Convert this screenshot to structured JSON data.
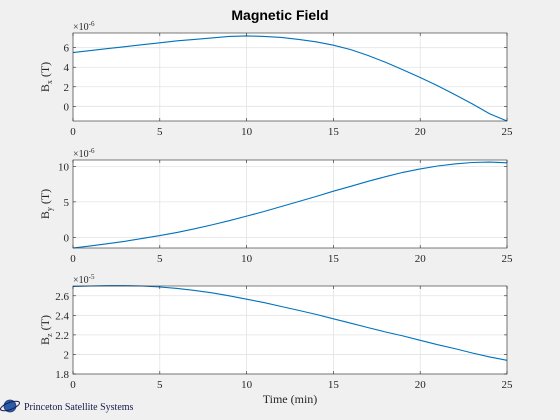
{
  "chart_data": [
    {
      "type": "line",
      "title": "Magnetic Field",
      "ylabel_main": "B",
      "ylabel_sub": "x",
      "ylabel_unit": " (T)",
      "xlabel": "",
      "exponent_base": "×10",
      "exponent_power": "-6",
      "xlim": [
        0,
        25
      ],
      "ylim": [
        -1.5,
        7.5
      ],
      "xticks": [
        0,
        5,
        10,
        15,
        20,
        25
      ],
      "yticks": [
        0,
        2,
        4,
        6
      ],
      "grid": true,
      "color": "#0072bd",
      "series": [
        {
          "x": [
            0,
            1,
            2,
            3,
            4,
            5,
            6,
            7,
            8,
            9,
            10,
            11,
            12,
            13,
            14,
            15,
            16,
            17,
            18,
            19,
            20,
            21,
            22,
            23,
            24,
            25
          ],
          "values": [
            5.5,
            5.7,
            5.9,
            6.1,
            6.3,
            6.5,
            6.7,
            6.85,
            7.0,
            7.15,
            7.2,
            7.15,
            7.05,
            6.85,
            6.6,
            6.25,
            5.8,
            5.2,
            4.5,
            3.75,
            2.95,
            2.1,
            1.2,
            0.25,
            -0.75,
            -1.5
          ]
        }
      ]
    },
    {
      "type": "line",
      "title": "",
      "ylabel_main": "B",
      "ylabel_sub": "y",
      "ylabel_unit": " (T)",
      "xlabel": "",
      "exponent_base": "×10",
      "exponent_power": "-6",
      "xlim": [
        0,
        25
      ],
      "ylim": [
        -1.5,
        10.9
      ],
      "xticks": [
        0,
        5,
        10,
        15,
        20,
        25
      ],
      "yticks": [
        0,
        5,
        10
      ],
      "grid": true,
      "color": "#0072bd",
      "series": [
        {
          "x": [
            0,
            1,
            2,
            3,
            4,
            5,
            6,
            7,
            8,
            9,
            10,
            11,
            12,
            13,
            14,
            15,
            16,
            17,
            18,
            19,
            20,
            21,
            22,
            23,
            24,
            25
          ],
          "values": [
            -1.5,
            -1.2,
            -0.9,
            -0.55,
            -0.15,
            0.25,
            0.7,
            1.2,
            1.75,
            2.35,
            3.0,
            3.65,
            4.35,
            5.05,
            5.75,
            6.5,
            7.2,
            7.9,
            8.55,
            9.15,
            9.65,
            10.05,
            10.35,
            10.55,
            10.6,
            10.5
          ]
        }
      ]
    },
    {
      "type": "line",
      "title": "",
      "ylabel_main": "B",
      "ylabel_sub": "z",
      "ylabel_unit": " (T)",
      "xlabel": "Time (min)",
      "exponent_base": "×10",
      "exponent_power": "-5",
      "xlim": [
        0,
        25
      ],
      "ylim": [
        1.8,
        2.7
      ],
      "xticks": [
        0,
        5,
        10,
        15,
        20,
        25
      ],
      "yticks": [
        1.8,
        2,
        2.2,
        2.4,
        2.6
      ],
      "grid": true,
      "color": "#0072bd",
      "series": [
        {
          "x": [
            0,
            1,
            2,
            3,
            4,
            5,
            6,
            7,
            8,
            9,
            10,
            11,
            12,
            13,
            14,
            15,
            16,
            17,
            18,
            19,
            20,
            21,
            22,
            23,
            24,
            25
          ],
          "values": [
            2.695,
            2.7,
            2.703,
            2.703,
            2.7,
            2.69,
            2.675,
            2.655,
            2.63,
            2.6,
            2.565,
            2.53,
            2.49,
            2.45,
            2.41,
            2.365,
            2.32,
            2.275,
            2.23,
            2.19,
            2.145,
            2.1,
            2.06,
            2.015,
            1.975,
            1.94
          ]
        }
      ]
    }
  ],
  "logo": {
    "text": "Princeton Satellite Systems",
    "icon": "globe-orbit-icon"
  }
}
